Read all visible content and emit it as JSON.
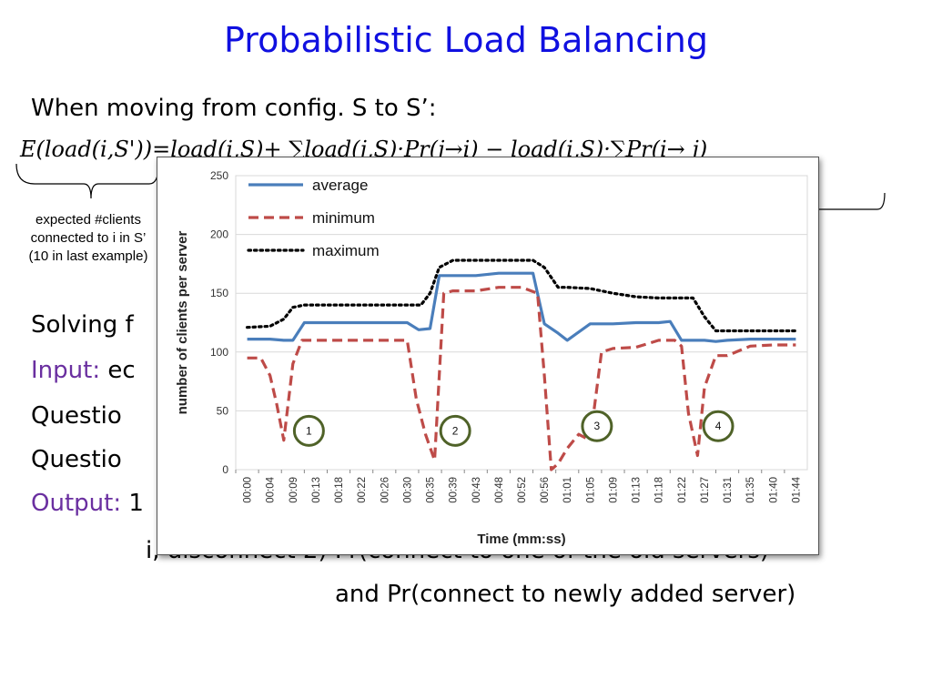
{
  "slide": {
    "title": "Probabilistic Load Balancing",
    "line1": "When moving from config. S to S’:",
    "equation": "E(load(i,S'))=load(i,S)+ ∑load(j,S)·Pr(j→i) − load(i,S)·∑Pr(i→ j)",
    "annotation_left": [
      "expected #clients",
      "connected to i in S’",
      "(10 in last example)"
    ],
    "stray_comma": ",",
    "solving_prefix": "Solving f",
    "input_label": "Input:",
    "input_text": " ec",
    "question1": "Questio",
    "question2": "Questio",
    "output_label": "Output:",
    "output_text": " 1",
    "line_cut": "i, disconnect 2) Pr(connect to one of the old servers)",
    "line_last": "and  Pr(connect to newly added server)"
  },
  "chart_data": {
    "type": "line",
    "xlabel": "Time (mm:ss)",
    "ylabel": "number of clients per server",
    "ylim": [
      0,
      250
    ],
    "yticks": [
      0,
      50,
      100,
      150,
      200,
      250
    ],
    "categories": [
      "00:00",
      "00:04",
      "00:09",
      "00:13",
      "00:18",
      "00:22",
      "00:26",
      "00:30",
      "00:35",
      "00:39",
      "00:43",
      "00:48",
      "00:52",
      "00:56",
      "01:01",
      "01:05",
      "01:09",
      "01:13",
      "01:18",
      "01:22",
      "01:27",
      "01:31",
      "01:35",
      "01:40",
      "01:44"
    ],
    "legend_position": "top-left",
    "series": [
      {
        "name": "average",
        "color": "#4a7ebb",
        "style": "solid",
        "x": [
          0,
          1,
          1.6,
          2,
          2.5,
          3,
          4,
          5,
          6,
          7,
          7.5,
          8,
          8.4,
          9,
          10,
          11,
          12,
          12.5,
          13,
          13.6,
          14,
          15,
          16,
          17,
          18,
          18.5,
          19,
          20,
          20.5,
          21,
          22,
          23,
          24
        ],
        "y": [
          111,
          111,
          110,
          110,
          125,
          125,
          125,
          125,
          125,
          125,
          119,
          120,
          165,
          165,
          165,
          167,
          167,
          167,
          124,
          116,
          110,
          124,
          124,
          125,
          125,
          126,
          110,
          110,
          109,
          110,
          111,
          111,
          111
        ]
      },
      {
        "name": "minimum",
        "color": "#be4b48",
        "style": "dashed",
        "x": [
          0,
          0.6,
          1,
          1.3,
          1.6,
          2,
          2.4,
          3,
          4,
          5,
          6,
          7,
          7.4,
          7.8,
          8.2,
          8.6,
          9,
          10,
          11,
          12,
          12.7,
          13,
          13.3,
          13.6,
          14,
          14.5,
          15,
          15.5,
          16,
          17,
          18,
          18.7,
          19,
          19.3,
          19.7,
          20,
          20.5,
          21,
          22,
          23,
          24
        ],
        "y": [
          95,
          95,
          80,
          55,
          25,
          90,
          110,
          110,
          110,
          110,
          110,
          110,
          60,
          30,
          8,
          150,
          152,
          152,
          155,
          155,
          150,
          80,
          0,
          5,
          18,
          30,
          25,
          100,
          103,
          104,
          110,
          110,
          105,
          48,
          12,
          70,
          97,
          97,
          105,
          106,
          106
        ]
      },
      {
        "name": "maximum",
        "color": "#000000",
        "style": "dotted",
        "x": [
          0,
          1,
          1.6,
          2,
          2.5,
          3,
          4,
          5,
          6,
          7,
          7.6,
          8,
          8.4,
          9,
          10,
          11,
          12,
          12.5,
          13,
          13.6,
          14,
          15,
          16,
          17,
          18,
          18.5,
          19,
          19.5,
          20,
          20.5,
          21,
          22,
          23,
          24
        ],
        "y": [
          121,
          122,
          128,
          138,
          140,
          140,
          140,
          140,
          140,
          140,
          140,
          150,
          172,
          178,
          178,
          178,
          178,
          178,
          172,
          155,
          155,
          154,
          150,
          147,
          146,
          146,
          146,
          146,
          130,
          118,
          118,
          118,
          118,
          118
        ]
      }
    ],
    "annotations": [
      {
        "label": "1",
        "x": 2.7,
        "y": 33
      },
      {
        "label": "2",
        "x": 9.1,
        "y": 33
      },
      {
        "label": "3",
        "x": 15.3,
        "y": 37
      },
      {
        "label": "4",
        "x": 20.6,
        "y": 37
      }
    ],
    "grid": "horizontal"
  }
}
